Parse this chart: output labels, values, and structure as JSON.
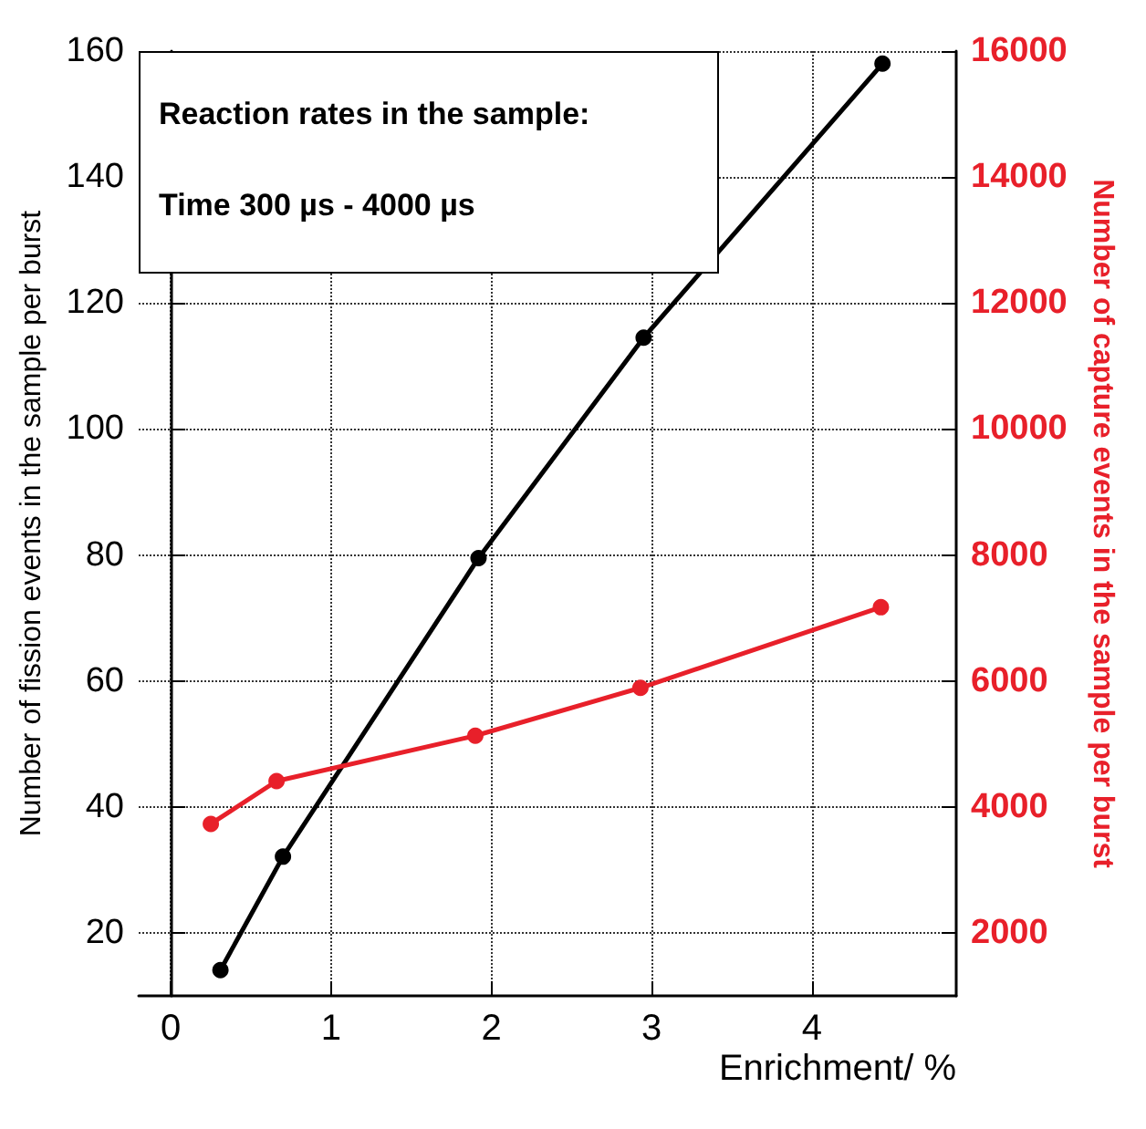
{
  "chart_data": {
    "type": "line",
    "xlabel": "Enrichment/ %",
    "ylabel": "Number of fission events in the sample per burst",
    "y2label": "Number of capture events in the sample per burst",
    "annotations": [
      "Reaction rates in the sample:",
      "Time 300 µs - 4000 µs"
    ],
    "series": [
      {
        "type": "line",
        "color": "#000000",
        "x": [
          0.31,
          0.7,
          1.92,
          2.95,
          4.44
        ],
        "values": [
          14.1,
          32.1,
          79.5,
          114.5,
          158
        ]
      },
      {
        "type": "line",
        "color": "#e8202a",
        "axis": "y2",
        "x": [
          0.25,
          0.66,
          1.9,
          2.93,
          4.43
        ],
        "values": [
          3730,
          4410,
          5130,
          5890,
          7170
        ]
      }
    ],
    "xlim": [
      -0.2,
      4.9
    ],
    "xticks": [
      0,
      1,
      2,
      3,
      4
    ],
    "ylim": [
      10,
      160
    ],
    "yticks": [
      20,
      40,
      60,
      80,
      100,
      120,
      140,
      160
    ],
    "y2lim": [
      1000,
      16000
    ],
    "y2ticks": [
      2000,
      4000,
      6000,
      8000,
      10000,
      12000,
      14000,
      16000
    ],
    "grid": true,
    "marker": "circle",
    "line_style": "solid"
  }
}
